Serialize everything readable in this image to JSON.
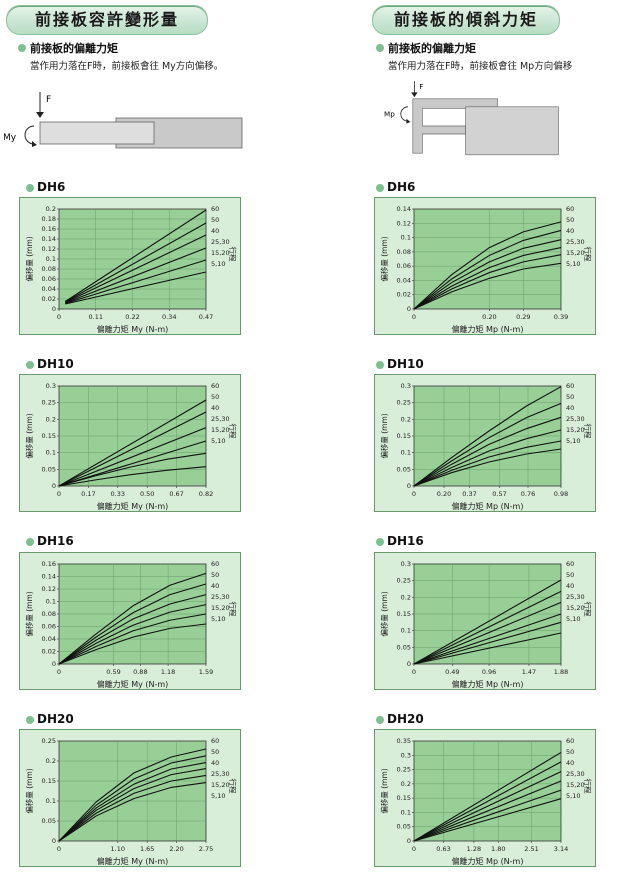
{
  "left": {
    "header": "前接板容許變形量",
    "subheading": "前接板的偏離力矩",
    "description": "當作用力落在F時，前接板會往 My方向偏移。",
    "diagram": {
      "force_label": "F",
      "moment_label": "My"
    }
  },
  "right": {
    "header": "前接板的傾斜力矩",
    "subheading": "前接板的偏離力矩",
    "description": "當作用力落在F時，前接板會往 Mp方向偏移",
    "diagram": {
      "force_label": "F",
      "moment_label": "Mp"
    }
  },
  "colors": {
    "plot_bg": "#97cf97",
    "panel_bg": "#d9eed8",
    "panel_border": "#6a9a6c",
    "line": "#111111",
    "accent": "#7cc08f"
  },
  "chart_data": [
    {
      "id": "DH6-My",
      "title": "DH6",
      "type": "line",
      "xlabel": "偏離力矩  My (N-m)",
      "ylabel": "偏移量 (mm)",
      "right_label": "行程",
      "xlim": [
        0,
        0.47
      ],
      "ylim": [
        0,
        0.2
      ],
      "xticks": [
        "0",
        "0.11",
        "0.22",
        "0.34",
        "0.47"
      ],
      "yticks": [
        "0",
        "0.02",
        "0.04",
        "0.06",
        "0.08",
        "0.1",
        "0.12",
        "0.14",
        "0.16",
        "0.18",
        "0.2"
      ],
      "series": [
        {
          "name": "60",
          "x": [
            0.02,
            0.47
          ],
          "y": [
            0.015,
            0.198
          ]
        },
        {
          "name": "50",
          "x": [
            0.02,
            0.47
          ],
          "y": [
            0.014,
            0.172
          ]
        },
        {
          "name": "40",
          "x": [
            0.02,
            0.47
          ],
          "y": [
            0.013,
            0.148
          ]
        },
        {
          "name": "25,30",
          "x": [
            0.02,
            0.47
          ],
          "y": [
            0.012,
            0.122
          ]
        },
        {
          "name": "15,20",
          "x": [
            0.02,
            0.47
          ],
          "y": [
            0.011,
            0.098
          ]
        },
        {
          "name": "5,10",
          "x": [
            0.02,
            0.47
          ],
          "y": [
            0.01,
            0.074
          ]
        }
      ]
    },
    {
      "id": "DH6-Mp",
      "title": "DH6",
      "type": "line",
      "xlabel": "偏離力矩  Mp (N-m)",
      "ylabel": "偏移量 (mm)",
      "right_label": "行程",
      "xlim": [
        0,
        0.39
      ],
      "ylim": [
        0,
        0.14
      ],
      "xticks": [
        "0",
        "0.20",
        "0.29",
        "0.39"
      ],
      "xtick_vals": [
        0,
        0.2,
        0.29,
        0.39
      ],
      "yticks": [
        "0",
        "0.02",
        "0.04",
        "0.06",
        "0.08",
        "0.1",
        "0.12",
        "0.14"
      ],
      "series": [
        {
          "name": "60",
          "x": [
            0,
            0.1,
            0.2,
            0.29,
            0.39
          ],
          "y": [
            0,
            0.048,
            0.086,
            0.108,
            0.122
          ]
        },
        {
          "name": "50",
          "x": [
            0,
            0.1,
            0.2,
            0.29,
            0.39
          ],
          "y": [
            0,
            0.042,
            0.075,
            0.096,
            0.11
          ]
        },
        {
          "name": "40",
          "x": [
            0,
            0.1,
            0.2,
            0.29,
            0.39
          ],
          "y": [
            0,
            0.037,
            0.066,
            0.085,
            0.097
          ]
        },
        {
          "name": "25,30",
          "x": [
            0,
            0.1,
            0.2,
            0.29,
            0.39
          ],
          "y": [
            0,
            0.032,
            0.058,
            0.075,
            0.086
          ]
        },
        {
          "name": "15,20",
          "x": [
            0,
            0.1,
            0.2,
            0.29,
            0.39
          ],
          "y": [
            0,
            0.028,
            0.051,
            0.066,
            0.076
          ]
        },
        {
          "name": "5,10",
          "x": [
            0,
            0.1,
            0.2,
            0.29,
            0.39
          ],
          "y": [
            0,
            0.024,
            0.043,
            0.056,
            0.064
          ]
        }
      ]
    },
    {
      "id": "DH10-My",
      "title": "DH10",
      "type": "line",
      "xlabel": "偏離力矩  My (N-m)",
      "ylabel": "偏移量 (mm)",
      "right_label": "行程",
      "xlim": [
        0,
        0.82
      ],
      "ylim": [
        0,
        0.3
      ],
      "xticks": [
        "0",
        "0.17",
        "0.33",
        "0.50",
        "0.67",
        "0.82"
      ],
      "yticks": [
        "0",
        "0.05",
        "0.1",
        "0.15",
        "0.2",
        "0.25",
        "0.3"
      ],
      "series": [
        {
          "name": "60",
          "x": [
            0,
            0.82
          ],
          "y": [
            0,
            0.258
          ]
        },
        {
          "name": "50",
          "x": [
            0,
            0.82
          ],
          "y": [
            0,
            0.222
          ]
        },
        {
          "name": "40",
          "x": [
            0,
            0.82
          ],
          "y": [
            0,
            0.175
          ]
        },
        {
          "name": "25,30",
          "x": [
            0,
            0.82
          ],
          "y": [
            0,
            0.135
          ]
        },
        {
          "name": "15,20",
          "x": [
            0,
            0.2,
            0.4,
            0.6,
            0.82
          ],
          "y": [
            0,
            0.03,
            0.057,
            0.08,
            0.098
          ]
        },
        {
          "name": "5,10",
          "x": [
            0,
            0.2,
            0.4,
            0.6,
            0.82
          ],
          "y": [
            0,
            0.018,
            0.034,
            0.047,
            0.058
          ]
        }
      ]
    },
    {
      "id": "DH10-Mp",
      "title": "DH10",
      "type": "line",
      "xlabel": "偏離力矩  Mp (N-m)",
      "ylabel": "偏移量 (mm)",
      "right_label": "行程",
      "xlim": [
        0,
        0.98
      ],
      "ylim": [
        0,
        0.3
      ],
      "xticks": [
        "0",
        "0.20",
        "0.37",
        "0.57",
        "0.76",
        "0.98"
      ],
      "xtick_vals": [
        0,
        0.2,
        0.37,
        0.57,
        0.76,
        0.98
      ],
      "yticks": [
        "0",
        "0.05",
        "0.1",
        "0.15",
        "0.2",
        "0.25",
        "0.3"
      ],
      "series": [
        {
          "name": "60",
          "x": [
            0,
            0.25,
            0.5,
            0.75,
            0.98
          ],
          "y": [
            0,
            0.085,
            0.165,
            0.24,
            0.298
          ]
        },
        {
          "name": "50",
          "x": [
            0,
            0.25,
            0.5,
            0.75,
            0.98
          ],
          "y": [
            0,
            0.075,
            0.145,
            0.205,
            0.248
          ]
        },
        {
          "name": "40",
          "x": [
            0,
            0.25,
            0.5,
            0.75,
            0.98
          ],
          "y": [
            0,
            0.065,
            0.125,
            0.172,
            0.206
          ]
        },
        {
          "name": "25,30",
          "x": [
            0,
            0.25,
            0.5,
            0.75,
            0.98
          ],
          "y": [
            0,
            0.055,
            0.105,
            0.142,
            0.168
          ]
        },
        {
          "name": "15,20",
          "x": [
            0,
            0.25,
            0.5,
            0.75,
            0.98
          ],
          "y": [
            0,
            0.047,
            0.087,
            0.116,
            0.135
          ]
        },
        {
          "name": "5,10",
          "x": [
            0,
            0.25,
            0.5,
            0.75,
            0.98
          ],
          "y": [
            0,
            0.04,
            0.072,
            0.096,
            0.111
          ]
        }
      ]
    },
    {
      "id": "DH16-My",
      "title": "DH16",
      "type": "line",
      "xlabel": "偏離力矩  My (N-m)",
      "ylabel": "偏移量 (mm)",
      "right_label": "行程",
      "xlim": [
        0,
        1.59
      ],
      "ylim": [
        0,
        0.16
      ],
      "xticks": [
        "0",
        "0.59",
        "0.88",
        "1.18",
        "1.59"
      ],
      "xtick_vals": [
        0,
        0.59,
        0.88,
        1.18,
        1.59
      ],
      "yticks": [
        "0",
        "0.02",
        "0.04",
        "0.06",
        "0.08",
        "0.1",
        "0.12",
        "0.14",
        "0.16"
      ],
      "series": [
        {
          "name": "60",
          "x": [
            0,
            0.4,
            0.8,
            1.2,
            1.59
          ],
          "y": [
            0,
            0.048,
            0.093,
            0.126,
            0.145
          ]
        },
        {
          "name": "50",
          "x": [
            0,
            0.4,
            0.8,
            1.2,
            1.59
          ],
          "y": [
            0,
            0.043,
            0.082,
            0.111,
            0.128
          ]
        },
        {
          "name": "40",
          "x": [
            0,
            0.4,
            0.8,
            1.2,
            1.59
          ],
          "y": [
            0,
            0.038,
            0.072,
            0.096,
            0.111
          ]
        },
        {
          "name": "25,30",
          "x": [
            0,
            0.4,
            0.8,
            1.2,
            1.59
          ],
          "y": [
            0,
            0.033,
            0.062,
            0.083,
            0.095
          ]
        },
        {
          "name": "15,20",
          "x": [
            0,
            0.4,
            0.8,
            1.2,
            1.59
          ],
          "y": [
            0,
            0.028,
            0.053,
            0.07,
            0.08
          ]
        },
        {
          "name": "5,10",
          "x": [
            0,
            0.4,
            0.8,
            1.2,
            1.59
          ],
          "y": [
            0,
            0.023,
            0.043,
            0.057,
            0.064
          ]
        }
      ]
    },
    {
      "id": "DH16-Mp",
      "title": "DH16",
      "type": "line",
      "xlabel": "偏離力矩  Mp (N-m)",
      "ylabel": "偏移量 (mm)",
      "right_label": "行程",
      "xlim": [
        0,
        1.88
      ],
      "ylim": [
        0,
        0.3
      ],
      "xticks": [
        "0",
        "0.49",
        "0.96",
        "1.47",
        "1.88"
      ],
      "xtick_vals": [
        0,
        0.49,
        0.96,
        1.47,
        1.88
      ],
      "yticks": [
        "0",
        "0.05",
        "0.1",
        "0.15",
        "0.2",
        "0.25",
        "0.3"
      ],
      "series": [
        {
          "name": "60",
          "x": [
            0,
            1.88
          ],
          "y": [
            0,
            0.252
          ]
        },
        {
          "name": "50",
          "x": [
            0,
            1.88
          ],
          "y": [
            0,
            0.218
          ]
        },
        {
          "name": "40",
          "x": [
            0,
            1.88
          ],
          "y": [
            0,
            0.185
          ]
        },
        {
          "name": "25,30",
          "x": [
            0,
            1.88
          ],
          "y": [
            0,
            0.15
          ]
        },
        {
          "name": "15,20",
          "x": [
            0,
            1.88
          ],
          "y": [
            0,
            0.125
          ]
        },
        {
          "name": "5,10",
          "x": [
            0,
            1.88
          ],
          "y": [
            0,
            0.093
          ]
        }
      ]
    },
    {
      "id": "DH20-My",
      "title": "DH20",
      "type": "line",
      "xlabel": "偏離力矩  My (N-m)",
      "ylabel": "偏移量 (mm)",
      "right_label": "行程",
      "xlim": [
        0,
        2.75
      ],
      "ylim": [
        0,
        0.25
      ],
      "xticks": [
        "0",
        "1.10",
        "1.65",
        "2.20",
        "2.75"
      ],
      "xtick_vals": [
        0,
        1.1,
        1.65,
        2.2,
        2.75
      ],
      "yticks": [
        "0",
        "0.05",
        "0.1",
        "0.15",
        "0.2",
        "0.25"
      ],
      "series": [
        {
          "name": "60",
          "x": [
            0,
            0.7,
            1.4,
            2.1,
            2.75
          ],
          "y": [
            0,
            0.098,
            0.17,
            0.21,
            0.23
          ]
        },
        {
          "name": "50",
          "x": [
            0,
            0.7,
            1.4,
            2.1,
            2.75
          ],
          "y": [
            0,
            0.09,
            0.155,
            0.195,
            0.213
          ]
        },
        {
          "name": "40",
          "x": [
            0,
            0.7,
            1.4,
            2.1,
            2.75
          ],
          "y": [
            0,
            0.083,
            0.142,
            0.18,
            0.196
          ]
        },
        {
          "name": "25,30",
          "x": [
            0,
            0.7,
            1.4,
            2.1,
            2.75
          ],
          "y": [
            0,
            0.077,
            0.131,
            0.166,
            0.181
          ]
        },
        {
          "name": "15,20",
          "x": [
            0,
            0.7,
            1.4,
            2.1,
            2.75
          ],
          "y": [
            0,
            0.07,
            0.119,
            0.15,
            0.164
          ]
        },
        {
          "name": "5,10",
          "x": [
            0,
            0.7,
            1.4,
            2.1,
            2.75
          ],
          "y": [
            0,
            0.063,
            0.106,
            0.134,
            0.146
          ]
        }
      ]
    },
    {
      "id": "DH20-Mp",
      "title": "DH20",
      "type": "line",
      "xlabel": "偏離力矩  Mp (N-m)",
      "ylabel": "偏移量 (mm)",
      "right_label": "行程",
      "xlim": [
        0,
        3.14
      ],
      "ylim": [
        0,
        0.35
      ],
      "xticks": [
        "0",
        "0.63",
        "1.28",
        "1.80",
        "2.51",
        "3.14"
      ],
      "xtick_vals": [
        0,
        0.63,
        1.28,
        1.8,
        2.51,
        3.14
      ],
      "yticks": [
        "0",
        "0.05",
        "0.1",
        "0.15",
        "0.2",
        "0.25",
        "0.3",
        "0.35"
      ],
      "series": [
        {
          "name": "60",
          "x": [
            0,
            3.14
          ],
          "y": [
            0,
            0.31
          ]
        },
        {
          "name": "50",
          "x": [
            0,
            3.14
          ],
          "y": [
            0,
            0.277
          ]
        },
        {
          "name": "40",
          "x": [
            0,
            3.14
          ],
          "y": [
            0,
            0.243
          ]
        },
        {
          "name": "25,30",
          "x": [
            0,
            3.14
          ],
          "y": [
            0,
            0.21
          ]
        },
        {
          "name": "15,20",
          "x": [
            0,
            3.14
          ],
          "y": [
            0,
            0.178
          ]
        },
        {
          "name": "5,10",
          "x": [
            0,
            3.14
          ],
          "y": [
            0,
            0.148
          ]
        }
      ]
    }
  ]
}
